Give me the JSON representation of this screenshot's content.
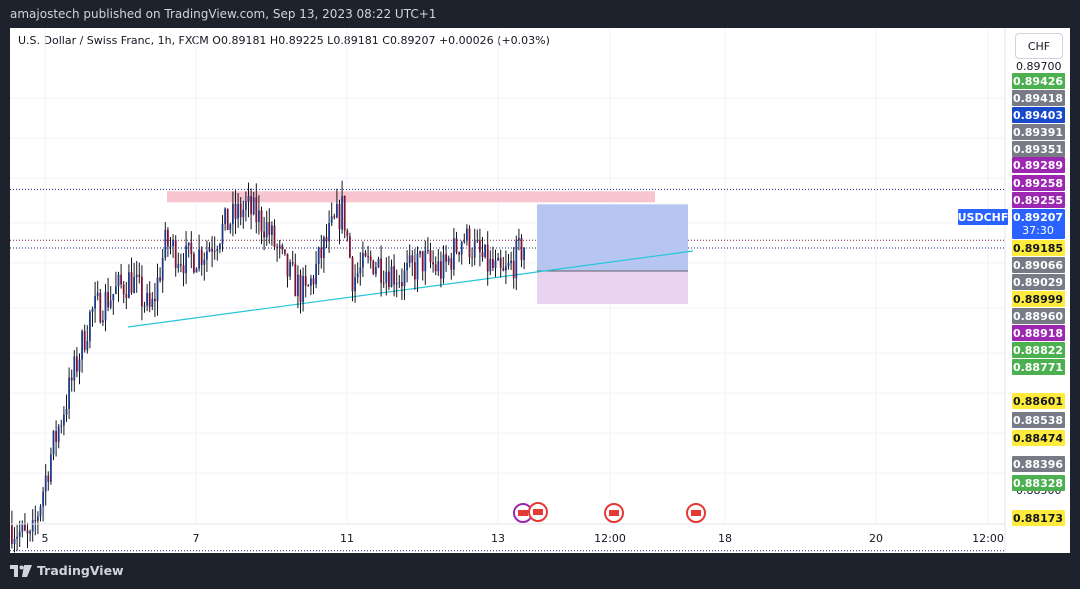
{
  "header": {
    "publisher_line": "amajostech published on TradingView.com, Sep 13, 2023 08:22 UTC+1"
  },
  "legend": {
    "text": "U.S. Dollar / Swiss Franc, 1h, FXCM  O0.89181  H0.89225  L0.89181  C0.89207  +0.00026 (+0.03%)"
  },
  "currency_button": "CHF",
  "footer": {
    "brand": "TradingView"
  },
  "chart_data": {
    "type": "candlestick",
    "symbol": "USDCHF",
    "interval": "1h",
    "ohlc": {
      "open": 0.89181,
      "high": 0.89225,
      "low": 0.89181,
      "close": 0.89207,
      "change": "+0.00026 (+0.03%)"
    },
    "countdown": "37:30",
    "x_ticks": [
      "5",
      "7",
      "11",
      "13",
      "12:00",
      "18",
      "20",
      "12:00"
    ],
    "y_tick_labels": [
      "0.89700",
      "0.88500"
    ],
    "price_labels": [
      {
        "value": "0.89426",
        "color": "#4caf50",
        "text_color": "#ffffff"
      },
      {
        "value": "0.89418",
        "color": "#787b86",
        "text_color": "#ffffff"
      },
      {
        "value": "0.89403",
        "color": "#1848cc",
        "text_color": "#ffffff"
      },
      {
        "value": "0.89391",
        "color": "#787b86",
        "text_color": "#ffffff"
      },
      {
        "value": "0.89351",
        "color": "#787b86",
        "text_color": "#ffffff"
      },
      {
        "value": "0.89289",
        "color": "#9c27b0",
        "text_color": "#ffffff"
      },
      {
        "value": "0.89258",
        "color": "#9c27b0",
        "text_color": "#ffffff"
      },
      {
        "value": "0.89255",
        "color": "#9c27b0",
        "text_color": "#ffffff"
      },
      {
        "value": "0.89185",
        "color": "#ffeb3b",
        "text_color": "#131722"
      },
      {
        "value": "0.89066",
        "color": "#787b86",
        "text_color": "#ffffff"
      },
      {
        "value": "0.89029",
        "color": "#787b86",
        "text_color": "#ffffff"
      },
      {
        "value": "0.88999",
        "color": "#ffeb3b",
        "text_color": "#131722"
      },
      {
        "value": "0.88960",
        "color": "#787b86",
        "text_color": "#ffffff"
      },
      {
        "value": "0.88918",
        "color": "#9c27b0",
        "text_color": "#ffffff"
      },
      {
        "value": "0.88822",
        "color": "#4caf50",
        "text_color": "#ffffff"
      },
      {
        "value": "0.88771",
        "color": "#4caf50",
        "text_color": "#ffffff"
      },
      {
        "value": "0.88601",
        "color": "#ffeb3b",
        "text_color": "#131722"
      },
      {
        "value": "0.88538",
        "color": "#787b86",
        "text_color": "#ffffff"
      },
      {
        "value": "0.88474",
        "color": "#ffeb3b",
        "text_color": "#131722"
      },
      {
        "value": "0.88396",
        "color": "#787b86",
        "text_color": "#ffffff"
      },
      {
        "value": "0.88328",
        "color": "#4caf50",
        "text_color": "#ffffff"
      },
      {
        "value": "0.88173",
        "color": "#ffeb3b",
        "text_color": "#131722"
      }
    ],
    "current_price": {
      "value": "0.89207",
      "color": "#2962ff"
    },
    "candle_color_up": "#1e3a8a",
    "candle_color_down": "#7b1432",
    "overlays": {
      "resistance_zone_color": "#f7c4cf",
      "long_position_profit_color": "#b6c6f0",
      "long_position_loss_color": "#ead3f0",
      "trendline_color": "#26c6da",
      "horizontal_line_color": "#1a237e"
    }
  }
}
